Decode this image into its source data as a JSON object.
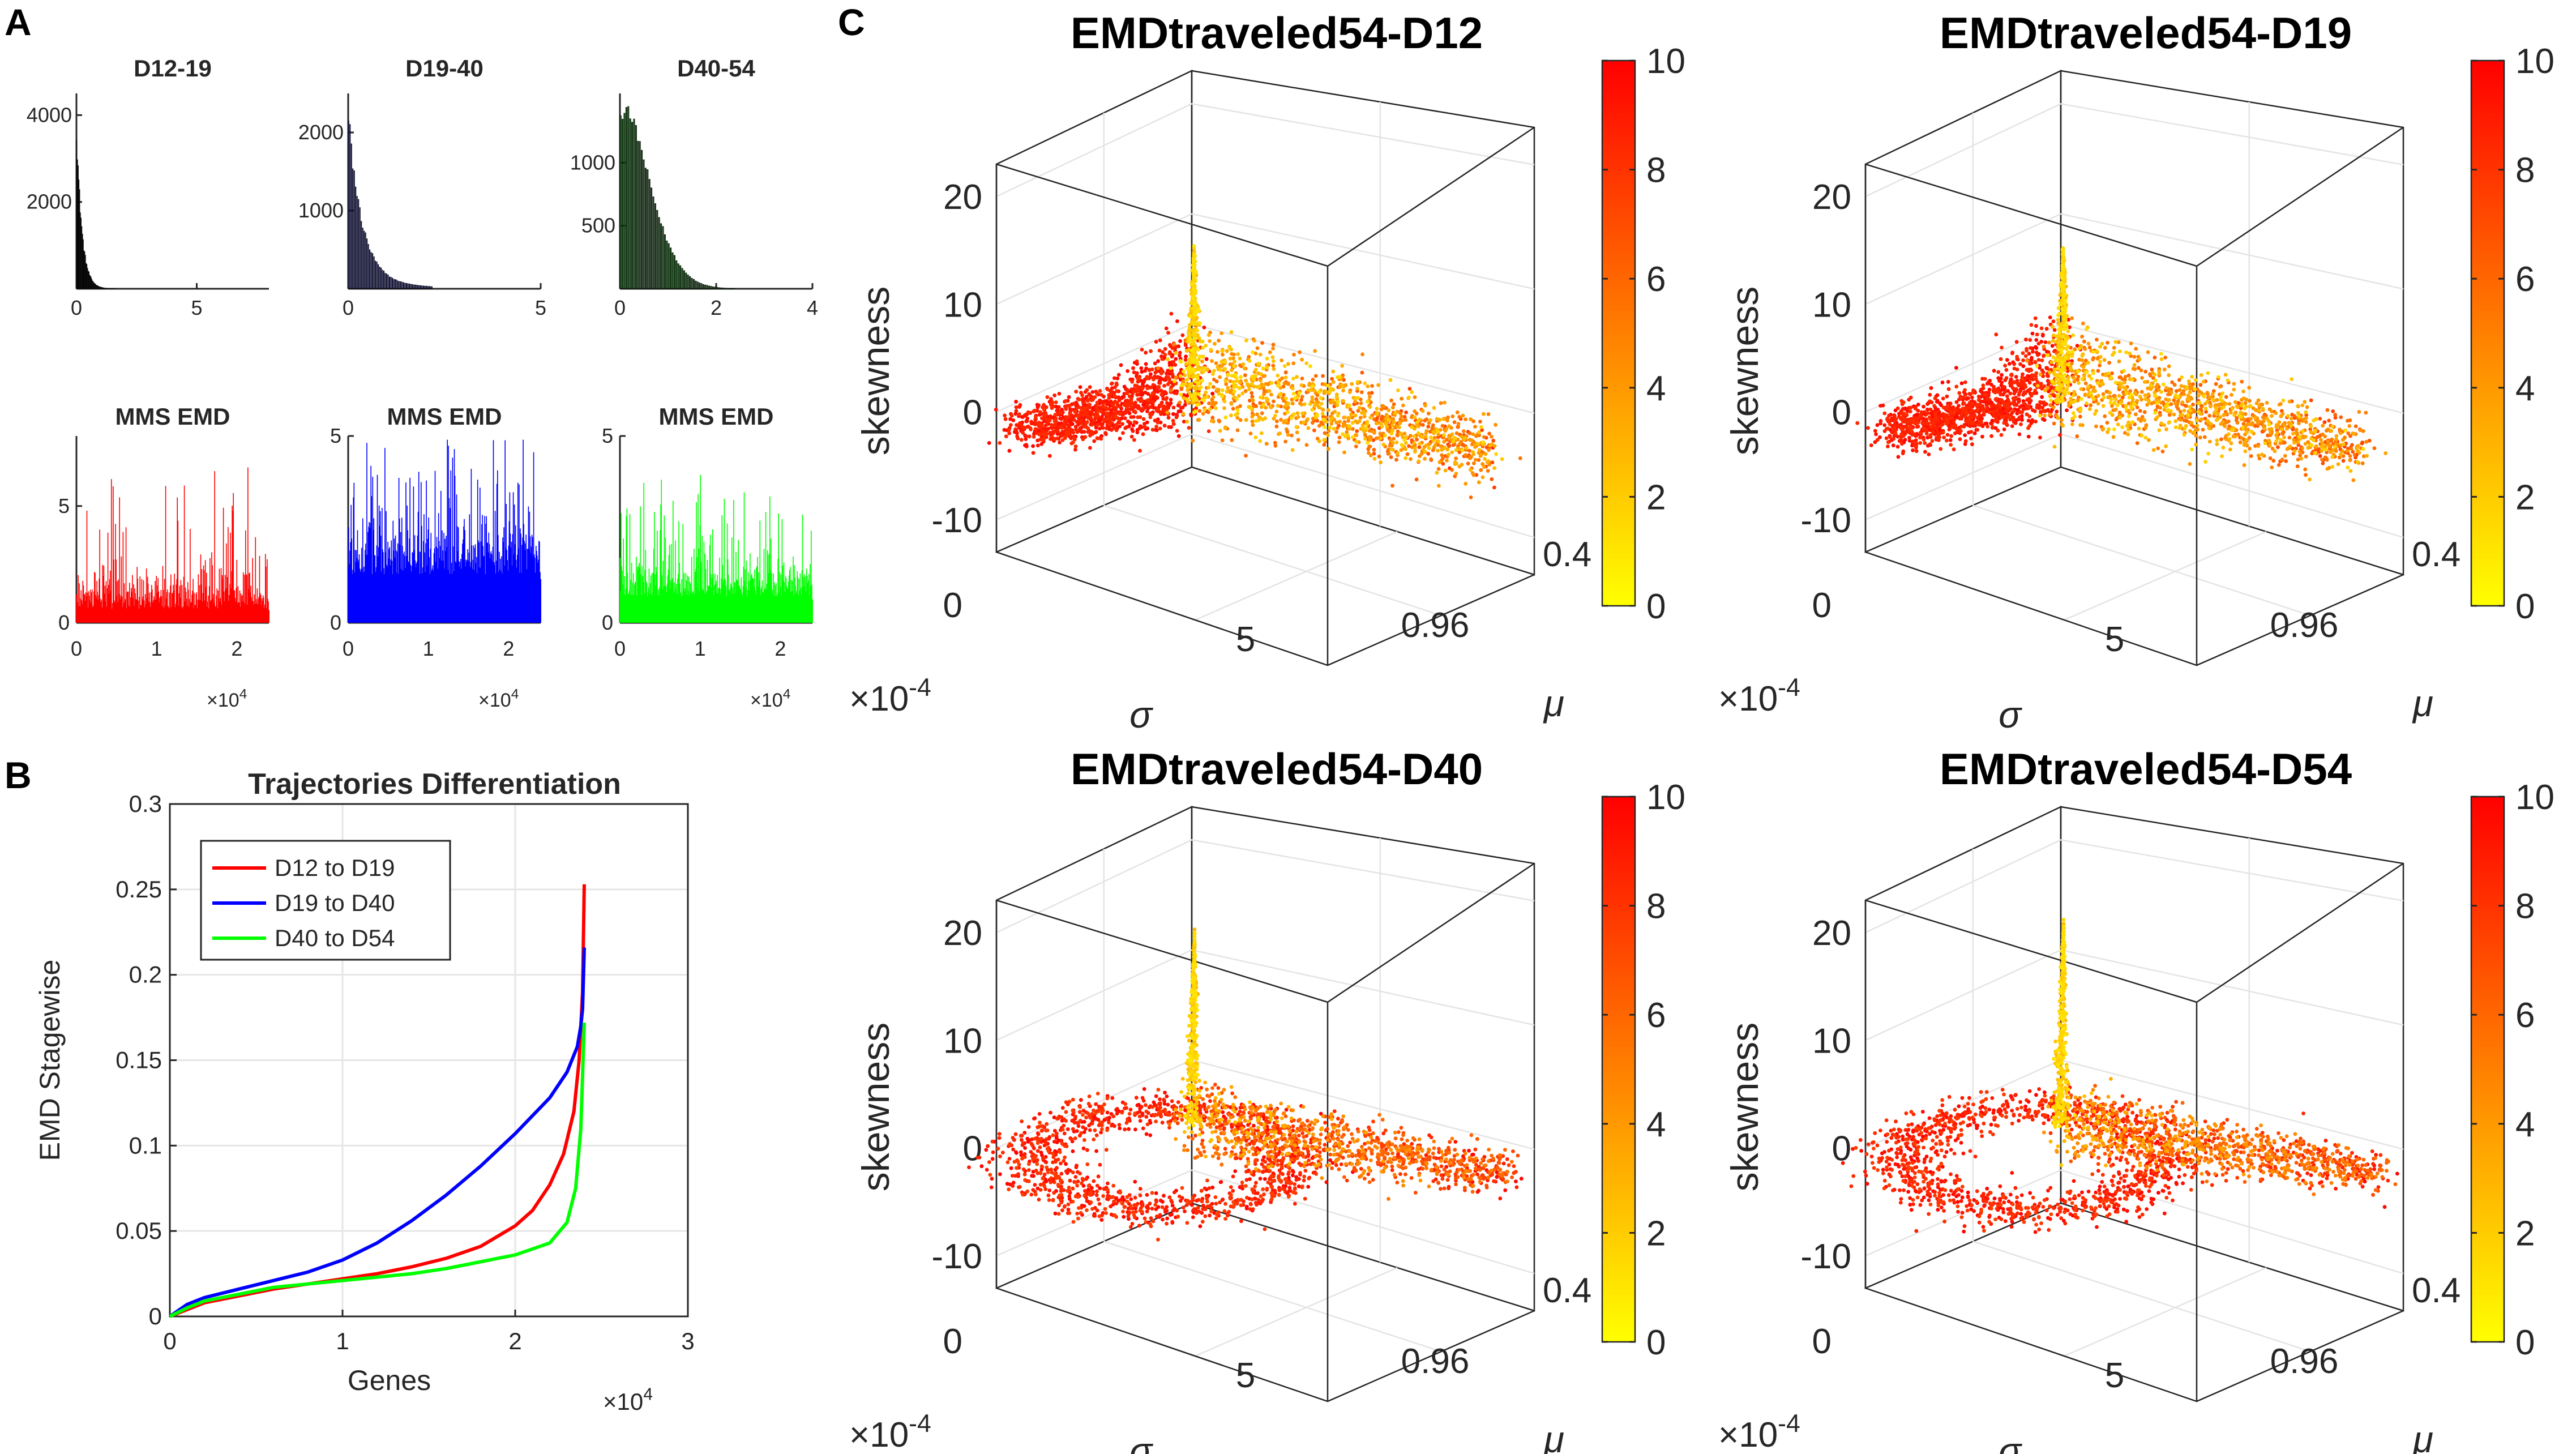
{
  "panel_letters": {
    "a": "A",
    "b": "B",
    "c": "C"
  },
  "colors": {
    "red": "#ff0000",
    "blue": "#0000ff",
    "green": "#00ff00",
    "dark_hist": "#1a1a1a",
    "blue_hist": "#1f1f6e",
    "green_hist": "#1d4d1d"
  },
  "chart_data": [
    {
      "id": "hist-d12-19",
      "type": "bar",
      "title": "D12-19",
      "x_ticks": [
        "0",
        "5"
      ],
      "y_ticks": [
        "2000",
        "4000"
      ],
      "xlim": [
        0,
        8
      ],
      "ylim": [
        0,
        4500
      ],
      "peak_bin_value": 4000,
      "color": "#1a1a1a"
    },
    {
      "id": "hist-d19-40",
      "type": "bar",
      "title": "D19-40",
      "x_ticks": [
        "0",
        "5"
      ],
      "y_ticks": [
        "1000",
        "2000"
      ],
      "xlim": [
        0,
        5
      ],
      "ylim": [
        0,
        2500
      ],
      "peak_bin_value": 2200,
      "color": "#1f1f6e"
    },
    {
      "id": "hist-d40-54",
      "type": "bar",
      "title": "D40-54",
      "x_ticks": [
        "0",
        "2",
        "4"
      ],
      "y_ticks": [
        "500",
        "1000"
      ],
      "xlim": [
        0,
        4
      ],
      "ylim": [
        0,
        1550
      ],
      "peak_bin_value": 1450,
      "color": "#1d4d1d"
    },
    {
      "id": "mms-d12-19",
      "type": "bar",
      "title": "MMS EMD",
      "x_ticks": [
        "0",
        "1",
        "2"
      ],
      "x_exponent": "×10^4",
      "y_ticks": [
        "0",
        "5"
      ],
      "xlim": [
        0,
        2.4
      ],
      "ylim": [
        0,
        8
      ],
      "color": "#ff0000"
    },
    {
      "id": "mms-d19-40",
      "type": "bar",
      "title": "MMS EMD",
      "x_ticks": [
        "0",
        "1",
        "2"
      ],
      "x_exponent": "×10^4",
      "y_ticks": [
        "0",
        "5"
      ],
      "xlim": [
        0,
        2.4
      ],
      "ylim": [
        0,
        5
      ],
      "color": "#0000ff"
    },
    {
      "id": "mms-d40-54",
      "type": "bar",
      "title": "MMS EMD",
      "x_ticks": [
        "0",
        "1",
        "2"
      ],
      "x_exponent": "×10^4",
      "y_ticks": [
        "0",
        "5"
      ],
      "xlim": [
        0,
        2.4
      ],
      "ylim": [
        0,
        5
      ],
      "color": "#00ff00"
    },
    {
      "id": "trajectories",
      "type": "line",
      "title": "Trajectories Differentiation",
      "xlabel": "Genes",
      "ylabel": "EMD Stagewise",
      "x_exponent": "×10^4",
      "xlim": [
        0,
        3
      ],
      "ylim": [
        0,
        0.3
      ],
      "x_ticks": [
        "0",
        "1",
        "2",
        "3"
      ],
      "y_ticks": [
        "0",
        "0.05",
        "0.1",
        "0.15",
        "0.2",
        "0.25",
        "0.3"
      ],
      "series": [
        {
          "name": "D12 to D19",
          "color": "#ff0000",
          "x": [
            0,
            0.1,
            0.2,
            0.4,
            0.6,
            0.8,
            1.0,
            1.2,
            1.4,
            1.6,
            1.8,
            2.0,
            2.1,
            2.2,
            2.28,
            2.34,
            2.37,
            2.39,
            2.4
          ],
          "y": [
            0,
            0.004,
            0.008,
            0.012,
            0.016,
            0.019,
            0.022,
            0.025,
            0.029,
            0.034,
            0.041,
            0.053,
            0.062,
            0.077,
            0.095,
            0.12,
            0.15,
            0.19,
            0.253
          ]
        },
        {
          "name": "D19 to D40",
          "color": "#0000ff",
          "x": [
            0,
            0.1,
            0.2,
            0.4,
            0.6,
            0.8,
            1.0,
            1.2,
            1.4,
            1.6,
            1.8,
            2.0,
            2.2,
            2.3,
            2.36,
            2.38,
            2.39,
            2.4
          ],
          "y": [
            0,
            0.007,
            0.011,
            0.016,
            0.021,
            0.026,
            0.033,
            0.043,
            0.056,
            0.071,
            0.088,
            0.107,
            0.128,
            0.143,
            0.158,
            0.17,
            0.18,
            0.216
          ]
        },
        {
          "name": "D40 to D54",
          "color": "#00ff00",
          "x": [
            0,
            0.1,
            0.2,
            0.4,
            0.6,
            0.8,
            1.0,
            1.2,
            1.4,
            1.6,
            1.8,
            2.0,
            2.2,
            2.3,
            2.35,
            2.38,
            2.4
          ],
          "y": [
            0,
            0.005,
            0.009,
            0.013,
            0.017,
            0.019,
            0.021,
            0.023,
            0.025,
            0.028,
            0.032,
            0.036,
            0.043,
            0.055,
            0.075,
            0.11,
            0.172
          ]
        }
      ]
    },
    {
      "id": "scatter-d12",
      "type": "scatter",
      "title": "EMDtraveled54-D12",
      "zlabel": "skewness",
      "xlabel": "σ",
      "ylabel": "μ",
      "x_exponent": "×10^-4",
      "z_ticks": [
        "20",
        "10",
        "0",
        "-10"
      ],
      "x_ticks": [
        "0",
        "5"
      ],
      "y_ticks": [
        "0.96",
        "0.4"
      ],
      "zlim": [
        -13,
        23
      ],
      "colorbar": {
        "min": 0,
        "max": 10,
        "ticks": [
          "0",
          "2",
          "4",
          "6",
          "8",
          "10"
        ],
        "colormap": "autumn"
      },
      "spike_max": 15,
      "shape": "wing"
    },
    {
      "id": "scatter-d19",
      "type": "scatter",
      "title": "EMDtraveled54-D19",
      "zlabel": "skewness",
      "xlabel": "σ",
      "ylabel": "μ",
      "x_exponent": "×10^-4",
      "z_ticks": [
        "20",
        "10",
        "0",
        "-10"
      ],
      "x_ticks": [
        "0",
        "5"
      ],
      "y_ticks": [
        "0.96",
        "0.4"
      ],
      "zlim": [
        -13,
        23
      ],
      "colorbar": {
        "min": 0,
        "max": 10,
        "ticks": [
          "0",
          "2",
          "4",
          "6",
          "8",
          "10"
        ],
        "colormap": "autumn"
      },
      "spike_max": 15,
      "shape": "wing"
    },
    {
      "id": "scatter-d40",
      "type": "scatter",
      "title": "EMDtraveled54-D40",
      "zlabel": "skewness",
      "xlabel": "σ",
      "ylabel": "μ",
      "x_exponent": "×10^-4",
      "z_ticks": [
        "20",
        "10",
        "0",
        "-10"
      ],
      "x_ticks": [
        "0",
        "5"
      ],
      "y_ticks": [
        "0.96",
        "0.4"
      ],
      "zlim": [
        -13,
        23
      ],
      "colorbar": {
        "min": 0,
        "max": 10,
        "ticks": [
          "0",
          "2",
          "4",
          "6",
          "8",
          "10"
        ],
        "colormap": "autumn"
      },
      "spike_max": 20,
      "shape": "loop"
    },
    {
      "id": "scatter-d54",
      "type": "scatter",
      "title": "EMDtraveled54-D54",
      "zlabel": "skewness",
      "xlabel": "σ",
      "ylabel": "μ",
      "x_exponent": "×10^-4",
      "z_ticks": [
        "20",
        "10",
        "0",
        "-10"
      ],
      "x_ticks": [
        "0",
        "5"
      ],
      "y_ticks": [
        "0.96",
        "0.4"
      ],
      "zlim": [
        -13,
        23
      ],
      "colorbar": {
        "min": 0,
        "max": 10,
        "ticks": [
          "0",
          "2",
          "4",
          "6",
          "8",
          "10"
        ],
        "colormap": "autumn"
      },
      "spike_max": 21,
      "shape": "loop"
    }
  ]
}
